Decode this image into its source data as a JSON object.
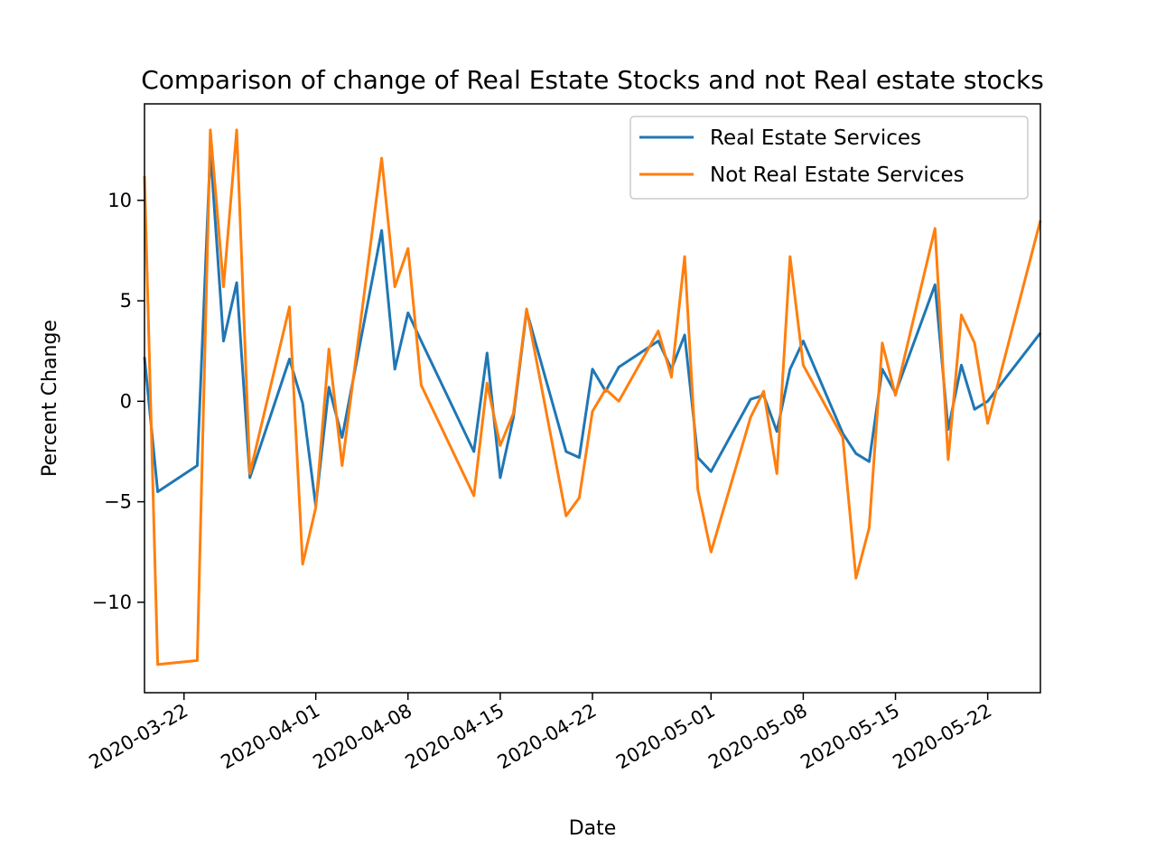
{
  "chart_data": {
    "type": "line",
    "title": "Comparison of change of Real Estate Stocks and not Real estate stocks",
    "xlabel": "Date",
    "ylabel": "Percent Change",
    "xlim": [
      "2020-03-19",
      "2020-05-26"
    ],
    "ylim": [
      -14.5,
      14.8
    ],
    "x_ticks": [
      "2020-03-22",
      "2020-04-01",
      "2020-04-08",
      "2020-04-15",
      "2020-04-22",
      "2020-05-01",
      "2020-05-08",
      "2020-05-15",
      "2020-05-22"
    ],
    "y_ticks": [
      -10,
      -5,
      0,
      5,
      10
    ],
    "y_tick_labels": [
      "−10",
      "−5",
      "0",
      "5",
      "10"
    ],
    "legend": {
      "location": "upper right"
    },
    "series": [
      {
        "name": "Real Estate Services",
        "color": "#1f77b4",
        "x": [
          "2020-03-19",
          "2020-03-20",
          "2020-03-23",
          "2020-03-24",
          "2020-03-25",
          "2020-03-26",
          "2020-03-27",
          "2020-03-30",
          "2020-03-31",
          "2020-04-01",
          "2020-04-02",
          "2020-04-03",
          "2020-04-06",
          "2020-04-07",
          "2020-04-08",
          "2020-04-09",
          "2020-04-13",
          "2020-04-14",
          "2020-04-15",
          "2020-04-16",
          "2020-04-17",
          "2020-04-20",
          "2020-04-21",
          "2020-04-22",
          "2020-04-23",
          "2020-04-24",
          "2020-04-27",
          "2020-04-28",
          "2020-04-29",
          "2020-04-30",
          "2020-05-01",
          "2020-05-04",
          "2020-05-05",
          "2020-05-06",
          "2020-05-07",
          "2020-05-08",
          "2020-05-11",
          "2020-05-12",
          "2020-05-13",
          "2020-05-14",
          "2020-05-15",
          "2020-05-18",
          "2020-05-19",
          "2020-05-20",
          "2020-05-21",
          "2020-05-22",
          "2020-05-26"
        ],
        "values": [
          2.2,
          -4.5,
          -3.2,
          12.5,
          3.0,
          5.9,
          -3.8,
          2.1,
          -0.1,
          -5.2,
          0.7,
          -1.8,
          8.5,
          1.6,
          4.4,
          3.0,
          -2.5,
          2.4,
          -3.8,
          -0.8,
          4.5,
          -2.5,
          -2.8,
          1.6,
          0.5,
          1.7,
          3.0,
          1.6,
          3.3,
          -2.8,
          -3.5,
          0.1,
          0.3,
          -1.5,
          1.6,
          3.0,
          -1.6,
          -2.6,
          -3.0,
          1.6,
          0.4,
          5.8,
          -1.4,
          1.8,
          -0.4,
          0.0,
          3.4
        ]
      },
      {
        "name": "Not Real Estate Services",
        "color": "#ff7f0e",
        "x": [
          "2020-03-19",
          "2020-03-20",
          "2020-03-23",
          "2020-03-24",
          "2020-03-25",
          "2020-03-26",
          "2020-03-27",
          "2020-03-30",
          "2020-03-31",
          "2020-04-01",
          "2020-04-02",
          "2020-04-03",
          "2020-04-06",
          "2020-04-07",
          "2020-04-08",
          "2020-04-09",
          "2020-04-13",
          "2020-04-14",
          "2020-04-15",
          "2020-04-16",
          "2020-04-17",
          "2020-04-20",
          "2020-04-21",
          "2020-04-22",
          "2020-04-23",
          "2020-04-24",
          "2020-04-27",
          "2020-04-28",
          "2020-04-29",
          "2020-04-30",
          "2020-05-01",
          "2020-05-04",
          "2020-05-05",
          "2020-05-06",
          "2020-05-07",
          "2020-05-08",
          "2020-05-11",
          "2020-05-12",
          "2020-05-13",
          "2020-05-14",
          "2020-05-15",
          "2020-05-18",
          "2020-05-19",
          "2020-05-20",
          "2020-05-21",
          "2020-05-22",
          "2020-05-26"
        ],
        "values": [
          11.2,
          -13.1,
          -12.9,
          13.5,
          5.7,
          13.5,
          -3.6,
          4.7,
          -8.1,
          -5.3,
          2.6,
          -3.2,
          12.1,
          5.7,
          7.6,
          0.8,
          -4.7,
          0.9,
          -2.2,
          -0.6,
          4.6,
          -5.7,
          -4.8,
          -0.5,
          0.6,
          0.0,
          3.5,
          1.2,
          7.2,
          -4.4,
          -7.5,
          -0.8,
          0.5,
          -3.6,
          7.2,
          1.8,
          -1.8,
          -8.8,
          -6.3,
          2.9,
          0.3,
          8.6,
          -2.9,
          4.3,
          2.9,
          -1.1,
          9.0
        ]
      }
    ]
  }
}
